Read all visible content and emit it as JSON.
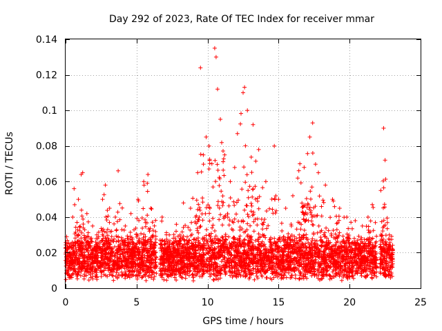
{
  "chart_data": {
    "type": "scatter",
    "title": "Day 292 of 2023, Rate Of TEC Index for receiver mmar",
    "xlabel": "GPS time / hours",
    "ylabel": "ROTI / TECUs",
    "xlim": [
      0,
      25
    ],
    "ylim": [
      0,
      0.14
    ],
    "xticks": [
      0,
      5,
      10,
      15,
      20,
      25
    ],
    "xtick_labels": [
      "0",
      "5",
      "10",
      "15",
      "20",
      "25"
    ],
    "yticks": [
      0,
      0.02,
      0.04,
      0.06,
      0.08,
      0.1,
      0.12,
      0.14
    ],
    "ytick_labels": [
      "0",
      "0.02",
      "0.04",
      "0.06",
      "0.08",
      "0.1",
      "0.12",
      "0.14"
    ],
    "grid": true,
    "marker": "+",
    "color": "#ff0000",
    "data_gaps_hours": [
      [
        6.4,
        6.65
      ],
      [
        21.9,
        22.15
      ]
    ],
    "series": [
      {
        "points": [
          [
            0.1,
            0.025
          ],
          [
            0.3,
            0.02
          ],
          [
            0.5,
            0.04
          ],
          [
            0.6,
            0.056
          ],
          [
            0.9,
            0.05
          ],
          [
            1.1,
            0.064
          ],
          [
            1.2,
            0.065
          ],
          [
            1.5,
            0.042
          ],
          [
            1.9,
            0.035
          ],
          [
            2.2,
            0.03
          ],
          [
            2.6,
            0.05
          ],
          [
            2.8,
            0.058
          ],
          [
            3.1,
            0.045
          ],
          [
            3.5,
            0.04
          ],
          [
            3.7,
            0.066
          ],
          [
            4.2,
            0.035
          ],
          [
            4.6,
            0.042
          ],
          [
            5.1,
            0.05
          ],
          [
            5.5,
            0.06
          ],
          [
            5.8,
            0.064
          ],
          [
            6.0,
            0.045
          ],
          [
            6.8,
            0.04
          ],
          [
            7.3,
            0.03
          ],
          [
            7.8,
            0.036
          ],
          [
            8.3,
            0.048
          ],
          [
            8.8,
            0.045
          ],
          [
            9.3,
            0.065
          ],
          [
            9.5,
            0.124
          ],
          [
            9.7,
            0.075
          ],
          [
            9.9,
            0.085
          ],
          [
            10.1,
            0.08
          ],
          [
            10.3,
            0.07
          ],
          [
            10.5,
            0.135
          ],
          [
            10.6,
            0.13
          ],
          [
            10.7,
            0.112
          ],
          [
            10.9,
            0.095
          ],
          [
            11.2,
            0.075
          ],
          [
            11.6,
            0.06
          ],
          [
            12.1,
            0.087
          ],
          [
            12.5,
            0.11
          ],
          [
            12.6,
            0.113
          ],
          [
            12.8,
            0.1
          ],
          [
            13.2,
            0.092
          ],
          [
            13.6,
            0.078
          ],
          [
            14.1,
            0.06
          ],
          [
            14.7,
            0.08
          ],
          [
            15.0,
            0.05
          ],
          [
            15.5,
            0.045
          ],
          [
            16.0,
            0.052
          ],
          [
            16.5,
            0.07
          ],
          [
            16.8,
            0.068
          ],
          [
            17.2,
            0.085
          ],
          [
            17.4,
            0.093
          ],
          [
            17.8,
            0.065
          ],
          [
            18.3,
            0.058
          ],
          [
            18.8,
            0.05
          ],
          [
            19.3,
            0.045
          ],
          [
            19.8,
            0.04
          ],
          [
            20.4,
            0.038
          ],
          [
            20.9,
            0.035
          ],
          [
            21.3,
            0.04
          ],
          [
            21.6,
            0.047
          ],
          [
            22.2,
            0.055
          ],
          [
            22.4,
            0.09
          ],
          [
            22.5,
            0.072
          ],
          [
            22.8,
            0.03
          ]
        ]
      }
    ]
  }
}
